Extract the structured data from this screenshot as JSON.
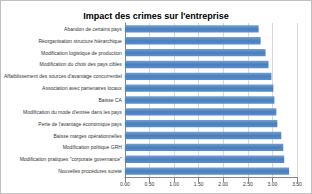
{
  "chart_data": {
    "type": "bar",
    "orientation": "horizontal",
    "title": "Impact des crimes sur l'entreprise",
    "categories": [
      "Abandon de certains pays",
      "Réorganisation structure hiérarchique",
      "Modification logistique de production",
      "Modification du choix des pays cibles",
      "Affaiblissement des sources d'avantage concurrentiel",
      "Association avec partenaires locaux",
      "Baisse CA",
      "Modification du mode d'entrée dans les pays",
      "Perte de l'avantage économique pays",
      "Baisse marges opérationnelles",
      "Modification politique GRH",
      "Modification pratiques \"corporate governance\"",
      "Nouvelles procédures sureté"
    ],
    "values": [
      2.72,
      2.76,
      2.86,
      2.92,
      2.98,
      3.02,
      3.04,
      3.08,
      3.1,
      3.18,
      3.22,
      3.24,
      3.34
    ],
    "color": "#4a7ebb",
    "xlim": [
      0,
      3.5
    ],
    "xticks": [
      {
        "value": 0,
        "label": "0.00"
      },
      {
        "value": 0.5,
        "label": "0.50"
      },
      {
        "value": 1,
        "label": "1.00"
      },
      {
        "value": 1.5,
        "label": "1.50"
      },
      {
        "value": 2,
        "label": "2.00"
      },
      {
        "value": 2.5,
        "label": "2.50"
      },
      {
        "value": 3,
        "label": "3.00"
      },
      {
        "value": 3.5,
        "label": "3.50"
      }
    ],
    "grid": true
  }
}
